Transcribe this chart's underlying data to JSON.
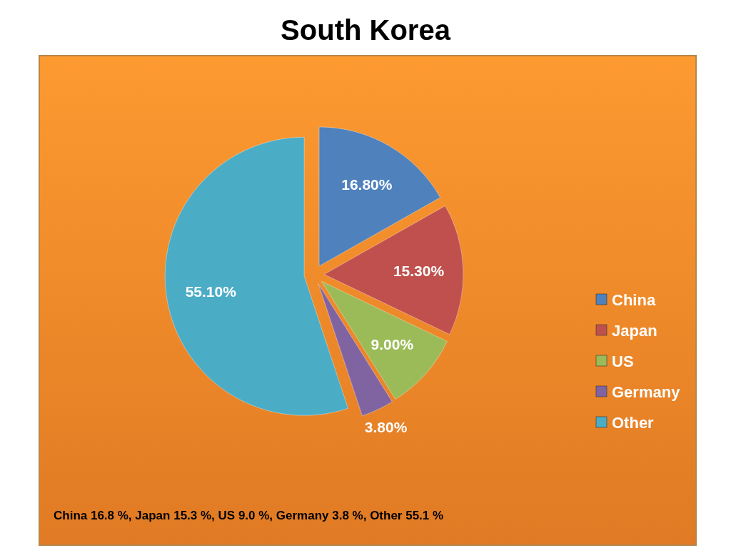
{
  "chart_data": {
    "type": "pie",
    "title": "South Korea",
    "categories": [
      "China",
      "Japan",
      "US",
      "Germany",
      "Other"
    ],
    "values": [
      16.8,
      15.3,
      9.0,
      3.8,
      55.1
    ],
    "colors": [
      "#4f81bd",
      "#c0504d",
      "#9bbb59",
      "#8064a2",
      "#4bacc6"
    ],
    "value_labels": [
      "16.80%",
      "15.30%",
      "9.00%",
      "3.80%",
      "55.10%"
    ],
    "legend": "right",
    "annotations": [
      "China 16.8 %, Japan 15.3 %, US 9.0 %, Germany 3.8 %, Other 55.1 %"
    ]
  }
}
